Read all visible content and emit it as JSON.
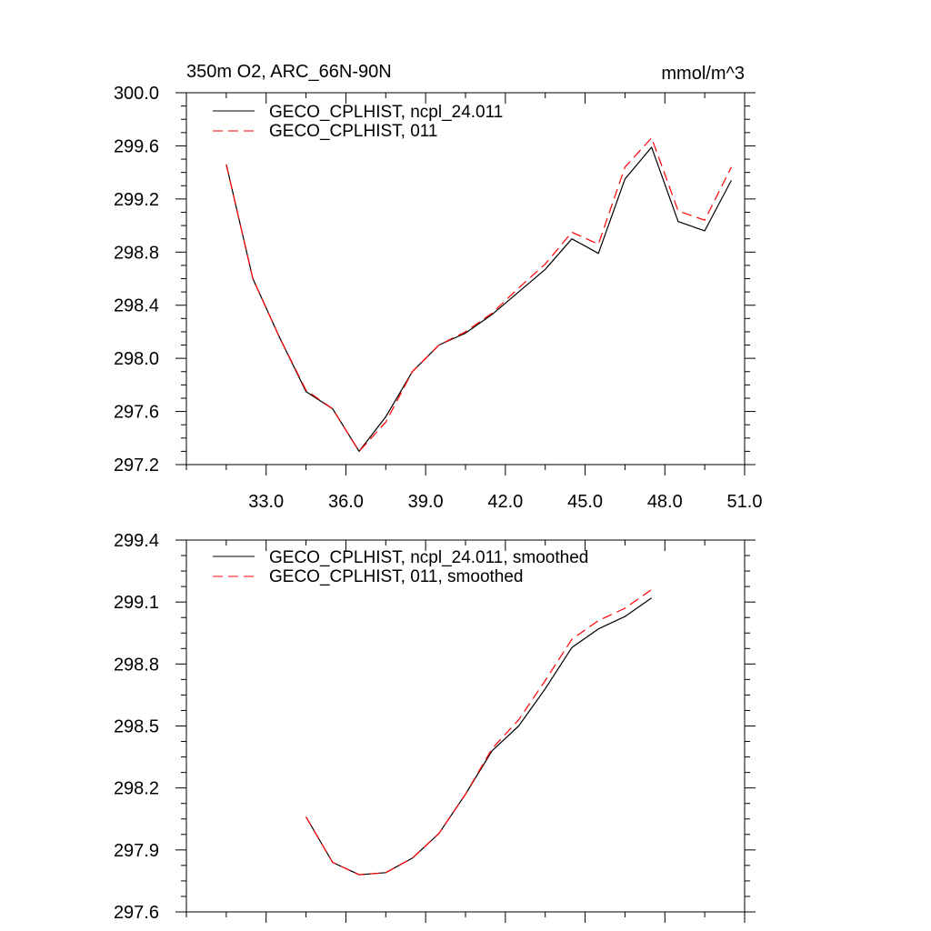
{
  "chart_data": [
    {
      "type": "line",
      "title_left": "350m O2, ARC_66N-90N",
      "title_right": "mmol/m^3",
      "xlim": [
        30.0,
        51.0
      ],
      "ylim": [
        297.2,
        300.0
      ],
      "xticks": [
        33.0,
        36.0,
        39.0,
        42.0,
        45.0,
        48.0,
        51.0
      ],
      "xtick_labels": [
        "33.0",
        "36.0",
        "39.0",
        "42.0",
        "45.0",
        "48.0",
        "51.0"
      ],
      "yticks": [
        297.2,
        297.6,
        298.0,
        298.4,
        298.8,
        299.2,
        299.6,
        300.0
      ],
      "ytick_labels": [
        "297.2",
        "297.6",
        "298.0",
        "298.4",
        "298.8",
        "299.2",
        "299.6",
        "300.0"
      ],
      "x": [
        31.5,
        32.5,
        33.5,
        34.5,
        35.5,
        36.5,
        37.5,
        38.5,
        39.5,
        40.5,
        41.5,
        42.5,
        43.5,
        44.5,
        45.5,
        46.5,
        47.5,
        48.5,
        49.5,
        50.5
      ],
      "series": [
        {
          "name": "GECO_CPLHIST, ncpl_24.011",
          "color": "#000000",
          "dash": "solid",
          "values": [
            299.46,
            298.6,
            298.16,
            297.75,
            297.62,
            297.3,
            297.56,
            297.9,
            298.1,
            298.19,
            298.33,
            298.5,
            298.67,
            298.9,
            298.79,
            299.35,
            299.59,
            299.03,
            298.96,
            299.34
          ]
        },
        {
          "name": "GECO_CPLHIST, 011",
          "color": "#ff0000",
          "dash": "dashed",
          "values": [
            299.46,
            298.6,
            298.16,
            297.76,
            297.62,
            297.3,
            297.52,
            297.9,
            298.1,
            298.2,
            298.34,
            298.53,
            298.71,
            298.95,
            298.86,
            299.44,
            299.66,
            299.11,
            299.04,
            299.44
          ]
        }
      ]
    },
    {
      "type": "line",
      "xlim": [
        30.0,
        51.0
      ],
      "ylim": [
        297.6,
        299.4
      ],
      "xticks": [
        33.0,
        36.0,
        39.0,
        42.0,
        45.0,
        48.0,
        51.0
      ],
      "yticks": [
        297.6,
        297.9,
        298.2,
        298.5,
        298.8,
        299.1,
        299.4
      ],
      "ytick_labels": [
        "297.6",
        "297.9",
        "298.2",
        "298.5",
        "298.8",
        "299.1",
        "299.4"
      ],
      "x": [
        34.5,
        35.5,
        36.5,
        37.5,
        38.5,
        39.5,
        40.5,
        41.5,
        42.5,
        43.5,
        44.5,
        45.5,
        46.5,
        47.5
      ],
      "series": [
        {
          "name": "GECO_CPLHIST, ncpl_24.011, smoothed",
          "color": "#000000",
          "dash": "solid",
          "values": [
            298.06,
            297.84,
            297.78,
            297.79,
            297.86,
            297.98,
            298.17,
            298.38,
            298.5,
            298.68,
            298.88,
            298.97,
            299.03,
            299.12
          ]
        },
        {
          "name": "GECO_CPLHIST, 011, smoothed",
          "color": "#ff0000",
          "dash": "dashed",
          "values": [
            298.06,
            297.84,
            297.78,
            297.79,
            297.86,
            297.98,
            298.17,
            298.39,
            298.53,
            298.72,
            298.92,
            299.01,
            299.07,
            299.16
          ]
        }
      ]
    }
  ]
}
